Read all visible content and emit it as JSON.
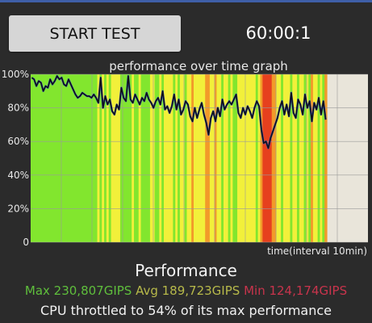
{
  "controls": {
    "start_label": "START TEST",
    "timer": "60:00:1"
  },
  "graph": {
    "title": "performance over time graph",
    "x_axis_label": "time(interval 10min)",
    "y_ticks": [
      "100%",
      "80%",
      "60%",
      "40%",
      "20%",
      "0"
    ]
  },
  "chart_data": {
    "type": "line",
    "title": "performance over time graph",
    "xlabel": "time(interval 10min)",
    "ylabel": "",
    "ylim": [
      0,
      100
    ],
    "y_ticks": [
      "100%",
      "80%",
      "60%",
      "40%",
      "20%",
      "0"
    ],
    "grid": true,
    "series": [
      {
        "values": [
          98,
          97,
          93,
          96,
          95,
          90,
          93,
          92,
          97,
          94,
          96,
          99,
          97,
          98,
          94,
          93,
          97,
          94,
          91,
          88,
          86,
          87,
          89,
          88,
          87,
          87,
          86,
          88,
          86,
          83,
          98,
          80,
          87,
          82,
          85,
          78,
          76,
          82,
          79,
          92,
          86,
          84,
          99,
          85,
          83,
          88,
          85,
          82,
          86,
          84,
          89,
          85,
          83,
          80,
          84,
          86,
          82,
          90,
          79,
          81,
          77,
          81,
          88,
          79,
          85,
          76,
          79,
          84,
          82,
          75,
          72,
          80,
          74,
          79,
          83,
          76,
          71,
          64,
          74,
          78,
          72,
          80,
          75,
          85,
          79,
          82,
          84,
          82,
          85,
          88,
          77,
          74,
          80,
          76,
          81,
          78,
          74,
          80,
          84,
          81,
          67,
          59,
          60,
          56,
          62,
          66,
          70,
          74,
          80,
          84,
          76,
          82,
          75,
          89,
          77,
          74,
          85,
          82,
          76,
          88,
          80,
          84,
          72,
          83,
          79,
          86,
          76,
          84,
          73
        ]
      }
    ],
    "colors": {
      "green": "#82e62e",
      "yellow": "#f2f03a",
      "orange": "#f29a2a",
      "red": "#e6401e"
    }
  },
  "performance": {
    "title": "Performance",
    "max": "Max 230,807GIPS",
    "avg": "Avg 189,723GIPS",
    "min": "Min 124,174GIPS",
    "throttle_msg": "CPU throttled to 54% of its max performance"
  }
}
